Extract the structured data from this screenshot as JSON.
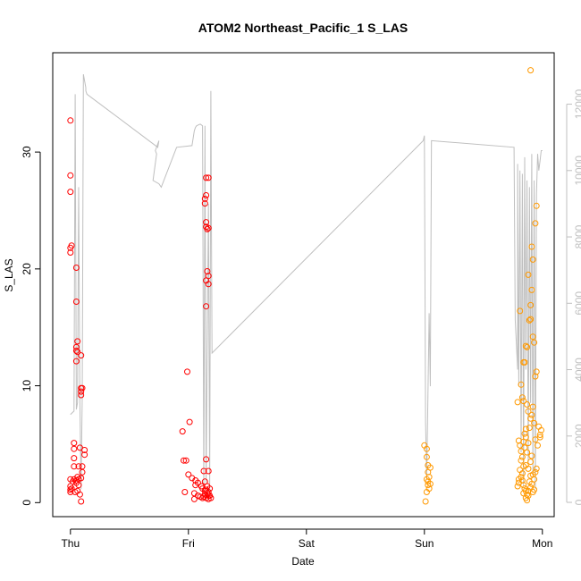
{
  "chart_data": {
    "type": "scatter",
    "title": "ATOM2 Northeast_Pacific_1 S_LAS",
    "xlabel": "Date",
    "ylabel": "S_LAS",
    "x_ticks": [
      "Thu",
      "Fri",
      "Sat",
      "Sun",
      "Mon"
    ],
    "y_ticks": [
      0,
      10,
      20,
      30
    ],
    "y2_ticks": [
      0,
      2000,
      4000,
      6000,
      8000,
      10000,
      12000
    ],
    "xlim": [
      -0.15,
      4.1
    ],
    "ylim": [
      -1.2,
      38.5
    ],
    "y2lim": [
      -430,
      13550
    ],
    "grid": false,
    "colors": {
      "red": "#ff0000",
      "orange": "#ff9900",
      "line": "#bfbfbf",
      "axis": "#000000",
      "axis2": "#bfbfbf"
    },
    "series": [
      {
        "color": "red",
        "marker": "open-circle",
        "points": [
          [
            0.0,
            32.7
          ],
          [
            0.0,
            28.0
          ],
          [
            0.0,
            26.6
          ],
          [
            0.01,
            22.0
          ],
          [
            0.0,
            21.8
          ],
          [
            0.0,
            21.4
          ],
          [
            0.05,
            20.1
          ],
          [
            0.05,
            17.2
          ],
          [
            0.06,
            13.8
          ],
          [
            0.05,
            13.3
          ],
          [
            0.06,
            12.9
          ],
          [
            0.05,
            13.0
          ],
          [
            0.09,
            12.6
          ],
          [
            0.05,
            12.1
          ],
          [
            0.09,
            9.8
          ],
          [
            0.1,
            9.8
          ],
          [
            0.09,
            9.5
          ],
          [
            0.09,
            9.2
          ],
          [
            0.03,
            5.1
          ],
          [
            0.03,
            4.6
          ],
          [
            0.08,
            4.7
          ],
          [
            0.12,
            4.5
          ],
          [
            0.12,
            4.1
          ],
          [
            0.03,
            3.8
          ],
          [
            0.03,
            3.1
          ],
          [
            0.07,
            3.1
          ],
          [
            0.1,
            3.1
          ],
          [
            0.1,
            2.6
          ],
          [
            0.06,
            2.2
          ],
          [
            0.09,
            2.1
          ],
          [
            0.0,
            2.0
          ],
          [
            0.02,
            1.8
          ],
          [
            0.03,
            2.0
          ],
          [
            0.05,
            1.7
          ],
          [
            0.07,
            1.5
          ],
          [
            0.05,
            1.9
          ],
          [
            0.07,
            2.0
          ],
          [
            0.0,
            1.4
          ],
          [
            0.01,
            1.2
          ],
          [
            0.0,
            1.1
          ],
          [
            0.06,
            1.0
          ],
          [
            0.04,
            0.9
          ],
          [
            0.0,
            0.9
          ],
          [
            0.08,
            0.7
          ],
          [
            0.09,
            0.1
          ],
          [
            0.95,
            6.1
          ],
          [
            1.01,
            6.9
          ],
          [
            0.99,
            11.2
          ],
          [
            1.15,
            27.8
          ],
          [
            1.17,
            27.8
          ],
          [
            1.15,
            26.3
          ],
          [
            1.14,
            26.0
          ],
          [
            1.14,
            25.6
          ],
          [
            1.15,
            24.0
          ],
          [
            1.15,
            23.6
          ],
          [
            1.17,
            23.5
          ],
          [
            1.16,
            23.4
          ],
          [
            1.16,
            19.8
          ],
          [
            1.17,
            19.4
          ],
          [
            1.15,
            19.0
          ],
          [
            1.17,
            18.7
          ],
          [
            1.15,
            16.8
          ],
          [
            0.96,
            3.6
          ],
          [
            0.98,
            3.6
          ],
          [
            1.15,
            3.7
          ],
          [
            1.0,
            2.4
          ],
          [
            1.03,
            2.1
          ],
          [
            1.06,
            1.9
          ],
          [
            1.06,
            1.5
          ],
          [
            1.08,
            1.7
          ],
          [
            1.11,
            1.4
          ],
          [
            1.12,
            1.2
          ],
          [
            1.13,
            2.7
          ],
          [
            1.17,
            2.7
          ],
          [
            1.14,
            1.8
          ],
          [
            1.16,
            1.4
          ],
          [
            1.15,
            1.1
          ],
          [
            1.14,
            1.0
          ],
          [
            1.17,
            0.9
          ],
          [
            1.16,
            0.8
          ],
          [
            1.14,
            0.7
          ],
          [
            1.17,
            0.6
          ],
          [
            1.13,
            0.5
          ],
          [
            1.15,
            0.4
          ],
          [
            1.17,
            0.3
          ],
          [
            1.18,
            0.6
          ],
          [
            1.18,
            1.2
          ],
          [
            1.19,
            0.4
          ],
          [
            0.97,
            0.9
          ],
          [
            1.05,
            0.8
          ],
          [
            1.08,
            0.6
          ],
          [
            1.1,
            0.5
          ],
          [
            1.12,
            0.4
          ],
          [
            1.05,
            0.3
          ]
        ]
      },
      {
        "color": "orange",
        "marker": "open-circle",
        "points": [
          [
            3.0,
            4.9
          ],
          [
            3.02,
            4.6
          ],
          [
            3.02,
            3.9
          ],
          [
            3.03,
            3.2
          ],
          [
            3.05,
            3.0
          ],
          [
            3.03,
            2.6
          ],
          [
            3.02,
            2.0
          ],
          [
            3.04,
            2.2
          ],
          [
            3.03,
            1.8
          ],
          [
            3.05,
            1.6
          ],
          [
            3.03,
            1.5
          ],
          [
            3.04,
            1.2
          ],
          [
            3.02,
            0.9
          ],
          [
            3.01,
            0.1
          ],
          [
            3.84,
            12.0
          ],
          [
            3.85,
            12.0
          ],
          [
            3.86,
            13.4
          ],
          [
            3.87,
            13.3
          ],
          [
            3.88,
            19.5
          ],
          [
            3.89,
            15.6
          ],
          [
            3.9,
            15.7
          ],
          [
            3.91,
            21.9
          ],
          [
            3.92,
            20.8
          ],
          [
            3.94,
            23.9
          ],
          [
            3.95,
            25.4
          ],
          [
            3.9,
            37.0
          ],
          [
            3.81,
            16.4
          ],
          [
            3.82,
            10.1
          ],
          [
            3.83,
            9.0
          ],
          [
            3.84,
            8.7
          ],
          [
            3.79,
            8.6
          ],
          [
            3.92,
            14.2
          ],
          [
            3.95,
            11.2
          ],
          [
            3.94,
            10.8
          ],
          [
            3.93,
            13.7
          ],
          [
            3.91,
            18.2
          ],
          [
            3.9,
            16.9
          ],
          [
            3.8,
            5.3
          ],
          [
            3.81,
            4.9
          ],
          [
            3.82,
            4.4
          ],
          [
            3.85,
            4.7
          ],
          [
            3.86,
            5.6
          ],
          [
            3.88,
            5.1
          ],
          [
            3.89,
            6.4
          ],
          [
            3.9,
            7.2
          ],
          [
            3.91,
            7.5
          ],
          [
            3.92,
            8.2
          ],
          [
            3.93,
            6.8
          ],
          [
            3.94,
            5.4
          ],
          [
            3.96,
            4.9
          ],
          [
            3.97,
            6.5
          ],
          [
            3.98,
            5.8
          ],
          [
            3.99,
            6.2
          ],
          [
            3.98,
            5.6
          ],
          [
            3.87,
            8.4
          ],
          [
            3.88,
            7.8
          ],
          [
            3.86,
            6.3
          ],
          [
            3.85,
            5.9
          ],
          [
            3.84,
            5.2
          ],
          [
            3.87,
            4.3
          ],
          [
            3.82,
            3.6
          ],
          [
            3.83,
            3.9
          ],
          [
            3.84,
            3.1
          ],
          [
            3.86,
            3.2
          ],
          [
            3.88,
            2.9
          ],
          [
            3.9,
            3.5
          ],
          [
            3.91,
            4.0
          ],
          [
            3.92,
            2.4
          ],
          [
            3.93,
            2.0
          ],
          [
            3.94,
            2.6
          ],
          [
            3.95,
            2.9
          ],
          [
            3.81,
            2.8
          ],
          [
            3.82,
            2.2
          ],
          [
            3.83,
            1.9
          ],
          [
            3.84,
            1.5
          ],
          [
            3.85,
            1.2
          ],
          [
            3.86,
            1.0
          ],
          [
            3.87,
            0.7
          ],
          [
            3.86,
            0.4
          ],
          [
            3.87,
            0.2
          ],
          [
            3.88,
            0.6
          ],
          [
            3.8,
            1.7
          ],
          [
            3.79,
            1.4
          ],
          [
            3.8,
            2.0
          ],
          [
            3.83,
            2.5
          ],
          [
            3.89,
            1.8
          ],
          [
            3.9,
            1.3
          ],
          [
            3.91,
            1.6
          ],
          [
            3.92,
            0.9
          ],
          [
            3.93,
            1.1
          ],
          [
            3.9,
            2.3
          ],
          [
            3.88,
            1.0
          ],
          [
            3.84,
            0.8
          ]
        ]
      }
    ],
    "line_series": {
      "axis": "secondary",
      "color": "line",
      "points": [
        [
          0.0,
          2650
        ],
        [
          0.03,
          2750
        ],
        [
          0.04,
          12300
        ],
        [
          0.05,
          2800
        ],
        [
          0.06,
          3000
        ],
        [
          0.07,
          9500
        ],
        [
          0.08,
          3000
        ],
        [
          0.09,
          400
        ],
        [
          0.1,
          3200
        ],
        [
          0.11,
          12900
        ],
        [
          0.13,
          12500
        ],
        [
          0.13,
          12400
        ],
        [
          0.14,
          12300
        ],
        [
          0.74,
          10700
        ],
        [
          0.75,
          10900
        ],
        [
          0.72,
          10600
        ],
        [
          0.73,
          10500
        ],
        [
          0.7,
          9700
        ],
        [
          0.75,
          9600
        ],
        [
          0.77,
          9500
        ],
        [
          0.9,
          10700
        ],
        [
          1.03,
          10750
        ],
        [
          1.05,
          11200
        ],
        [
          1.06,
          11300
        ],
        [
          1.07,
          11350
        ],
        [
          1.1,
          11400
        ],
        [
          1.12,
          11350
        ],
        [
          1.13,
          400
        ],
        [
          1.14,
          11350
        ],
        [
          1.15,
          600
        ],
        [
          1.17,
          9000
        ],
        [
          1.18,
          300
        ],
        [
          1.19,
          12400
        ],
        [
          1.2,
          4500
        ],
        [
          2.99,
          10900
        ],
        [
          3.0,
          11050
        ],
        [
          3.01,
          2400
        ],
        [
          3.02,
          700
        ],
        [
          3.04,
          5700
        ],
        [
          3.05,
          3500
        ],
        [
          3.06,
          10900
        ],
        [
          3.76,
          10700
        ],
        [
          3.77,
          5500
        ],
        [
          3.79,
          4000
        ],
        [
          3.79,
          10200
        ],
        [
          3.8,
          3500
        ],
        [
          3.81,
          10000
        ],
        [
          3.82,
          1500
        ],
        [
          3.83,
          9900
        ],
        [
          3.84,
          500
        ],
        [
          3.85,
          10400
        ],
        [
          3.86,
          4000
        ],
        [
          3.87,
          9700
        ],
        [
          3.88,
          1200
        ],
        [
          3.89,
          9500
        ],
        [
          3.9,
          3000
        ],
        [
          3.91,
          10500
        ],
        [
          3.92,
          800
        ],
        [
          3.93,
          9700
        ],
        [
          3.94,
          400
        ],
        [
          3.95,
          9300
        ],
        [
          3.96,
          10500
        ],
        [
          3.97,
          10000
        ],
        [
          3.98,
          10300
        ],
        [
          3.99,
          10600
        ],
        [
          4.0,
          10600
        ]
      ]
    }
  }
}
